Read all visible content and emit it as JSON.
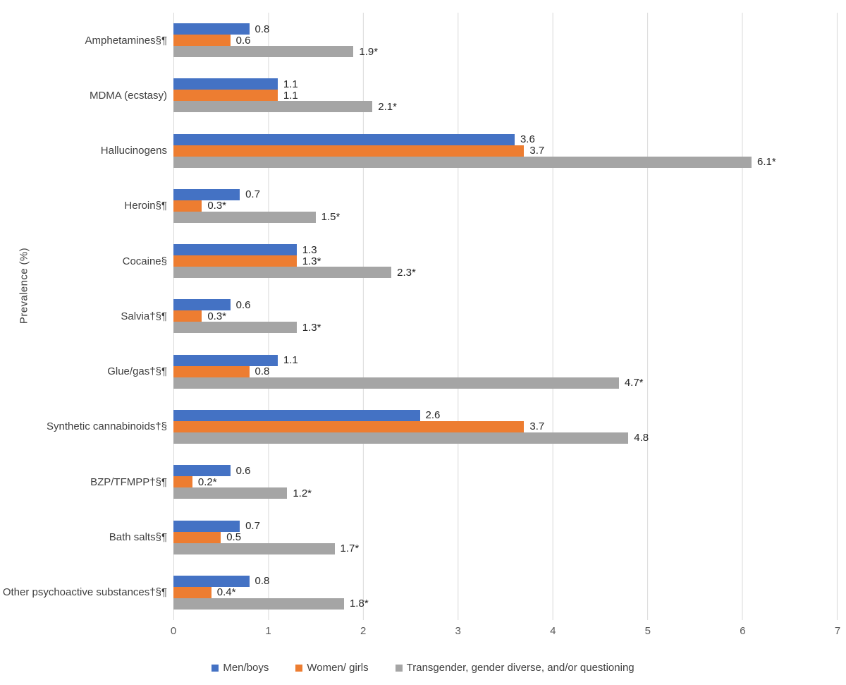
{
  "chart_data": {
    "type": "bar",
    "orientation": "horizontal",
    "title": "",
    "xlabel": "",
    "ylabel": "Prevalence (%)",
    "xlim": [
      0,
      7
    ],
    "xticks": [
      "0",
      "1",
      "2",
      "3",
      "4",
      "5",
      "6",
      "7"
    ],
    "grid": "vertical gridlines on",
    "gridline_color": "#D9D9D9",
    "legend_position": "bottom-center",
    "categories": [
      "Amphetamines§¶",
      "MDMA (ecstasy)",
      "Hallucinogens",
      "Heroin§¶",
      "Cocaine§",
      "Salvia†§¶",
      "Glue/gas†§¶",
      "Synthetic cannabinoids†§",
      "BZP/TFMPP†§¶",
      "Bath salts§¶",
      "Other psychoactive substances†§¶"
    ],
    "series": [
      {
        "name": "Men/boys",
        "slug": "men-boys",
        "color": "#4472C4",
        "values": [
          0.8,
          1.1,
          3.6,
          0.7,
          1.3,
          0.6,
          1.1,
          2.6,
          0.6,
          0.7,
          0.8
        ],
        "labels": [
          "0.8",
          "1.1",
          "3.6",
          "0.7",
          "1.3",
          "0.6",
          "1.1",
          "2.6",
          "0.6",
          "0.7",
          "0.8"
        ]
      },
      {
        "name": "Women/ girls",
        "slug": "women-girls",
        "color": "#ED7D31",
        "values": [
          0.6,
          1.1,
          3.7,
          0.3,
          1.3,
          0.3,
          0.8,
          3.7,
          0.2,
          0.5,
          0.4
        ],
        "labels": [
          "0.6",
          "1.1",
          "3.7",
          "0.3*",
          "1.3*",
          "0.3*",
          "0.8",
          "3.7",
          "0.2*",
          "0.5",
          "0.4*"
        ]
      },
      {
        "name": "Transgender, gender diverse, and/or questioning",
        "slug": "transgender-gender-diverse-questioning",
        "color": "#A5A5A5",
        "values": [
          1.9,
          2.1,
          6.1,
          1.5,
          2.3,
          1.3,
          4.7,
          4.8,
          1.2,
          1.7,
          1.8
        ],
        "labels": [
          "1.9*",
          "2.1*",
          "6.1*",
          "1.5*",
          "2.3*",
          "1.3*",
          "4.7*",
          "4.8",
          "1.2*",
          "1.7*",
          "1.8*"
        ]
      }
    ]
  },
  "colors": {
    "background": "#FFFFFF",
    "grid": "#D9D9D9",
    "axis_text": "#595959",
    "label_text": "#404040",
    "value_text": "#262626"
  }
}
